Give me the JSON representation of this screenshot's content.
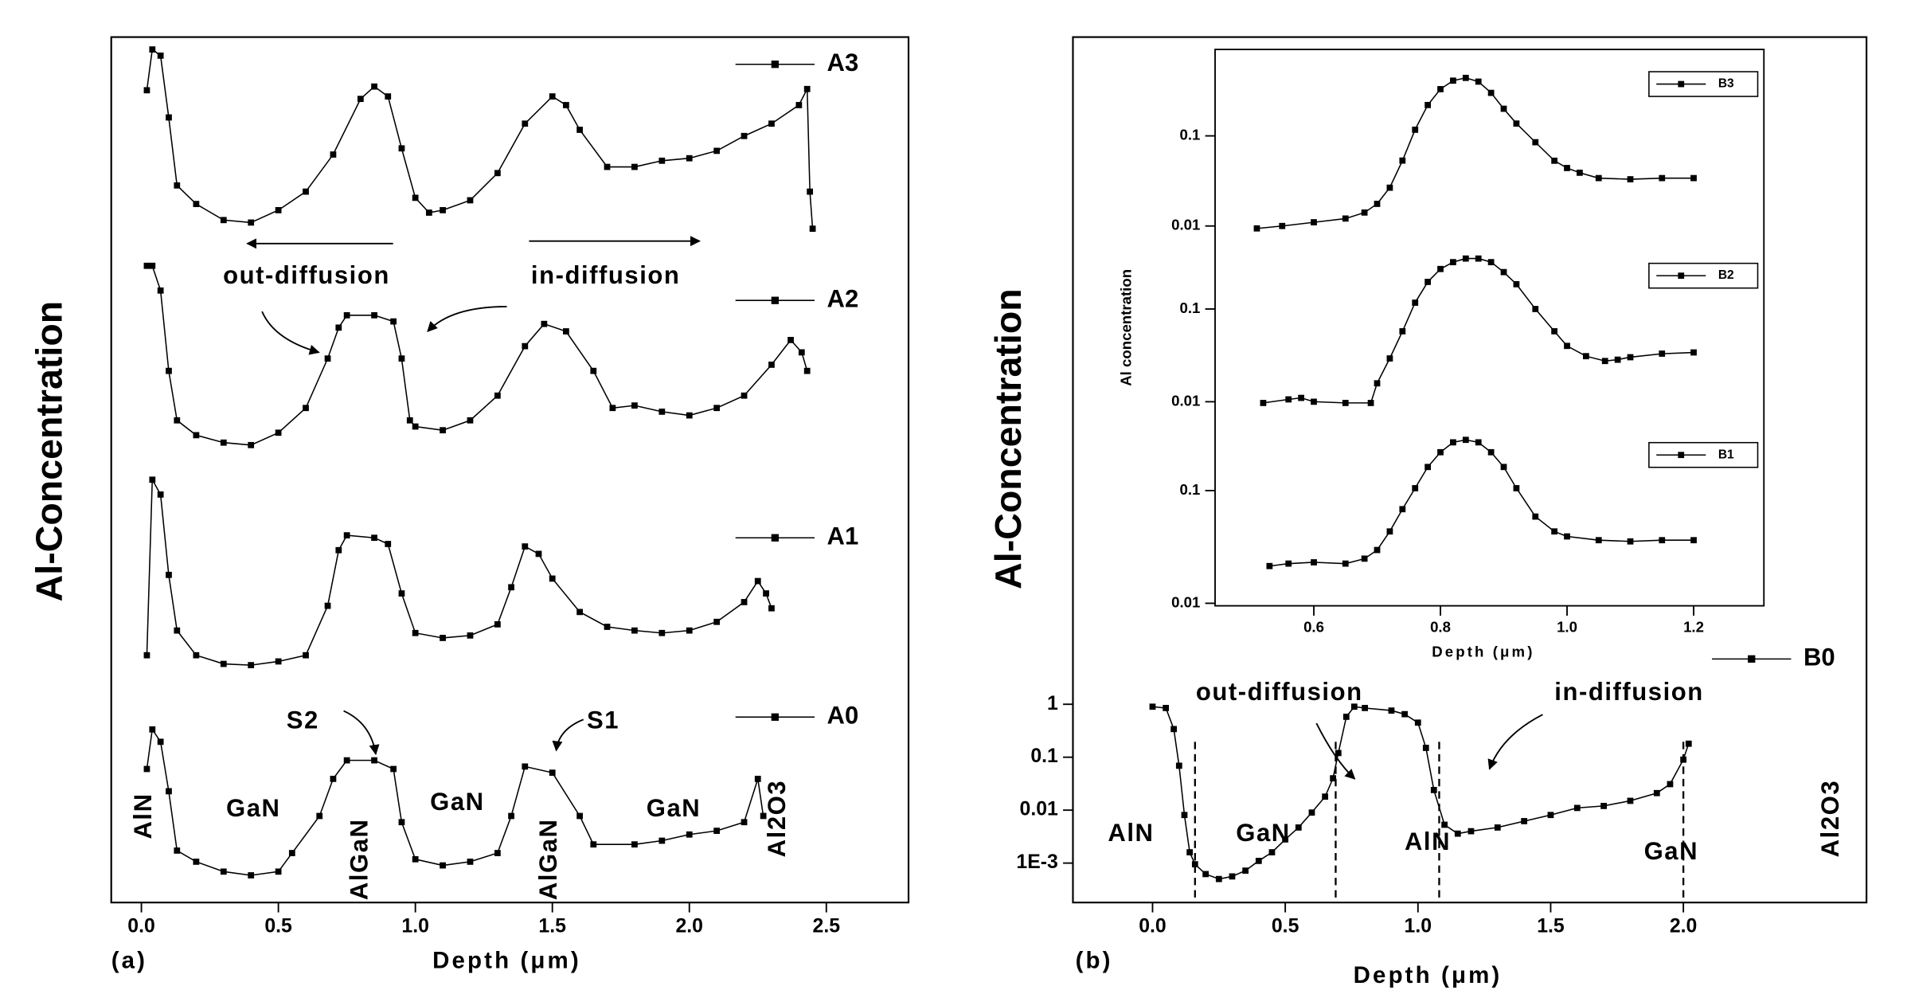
{
  "chart_data": [
    {
      "type": "line",
      "panel_label": "(a)",
      "xlabel": "Depth (μm)",
      "ylabel": "Al-Concentration",
      "xlim": [
        -0.11,
        2.8
      ],
      "xticks": [
        {
          "value": 0,
          "label": "0.0"
        },
        0.5,
        {
          "value": 1,
          "label": "1.0"
        },
        1.5,
        {
          "value": 2,
          "label": "2.0"
        },
        2.5
      ],
      "ylim": [
        0,
        700
      ],
      "series": [
        {
          "name": "A3",
          "color": "#000000",
          "x": [
            0.02,
            0.04,
            0.07,
            0.1,
            0.13,
            0.2,
            0.3,
            0.4,
            0.5,
            0.6,
            0.7,
            0.8,
            0.85,
            0.9,
            0.95,
            1.0,
            1.05,
            1.1,
            1.2,
            1.3,
            1.4,
            1.5,
            1.55,
            1.6,
            1.7,
            1.8,
            1.9,
            2.0,
            2.1,
            2.2,
            2.3,
            2.4,
            2.43,
            2.44,
            2.45
          ],
          "values": [
            657,
            690,
            685,
            635,
            580,
            565,
            552,
            550,
            560,
            575,
            605,
            650,
            660,
            652,
            610,
            570,
            558,
            560,
            568,
            590,
            630,
            652,
            645,
            625,
            595,
            595,
            600,
            602,
            608,
            620,
            630,
            645,
            658,
            575,
            545
          ]
        },
        {
          "name": "A2",
          "color": "#000000",
          "x": [
            0.02,
            0.04,
            0.07,
            0.1,
            0.13,
            0.2,
            0.3,
            0.4,
            0.5,
            0.6,
            0.68,
            0.72,
            0.75,
            0.85,
            0.92,
            0.95,
            0.98,
            1.0,
            1.1,
            1.2,
            1.3,
            1.4,
            1.47,
            1.55,
            1.65,
            1.72,
            1.8,
            1.9,
            2.0,
            2.1,
            2.2,
            2.3,
            2.37,
            2.41,
            2.43
          ],
          "values": [
            515,
            515,
            495,
            430,
            390,
            378,
            372,
            370,
            380,
            400,
            440,
            465,
            475,
            475,
            470,
            440,
            390,
            385,
            382,
            390,
            410,
            450,
            468,
            462,
            430,
            400,
            402,
            397,
            394,
            400,
            410,
            435,
            455,
            445,
            430
          ]
        },
        {
          "name": "A1",
          "color": "#000000",
          "x": [
            0.02,
            0.04,
            0.07,
            0.1,
            0.13,
            0.2,
            0.3,
            0.4,
            0.5,
            0.6,
            0.68,
            0.72,
            0.75,
            0.85,
            0.9,
            0.95,
            1.0,
            1.1,
            1.2,
            1.3,
            1.35,
            1.4,
            1.45,
            1.5,
            1.6,
            1.7,
            1.8,
            1.9,
            2.0,
            2.1,
            2.2,
            2.25,
            2.28,
            2.3
          ],
          "values": [
            200,
            342,
            330,
            265,
            220,
            200,
            193,
            192,
            195,
            200,
            240,
            285,
            297,
            295,
            290,
            250,
            218,
            214,
            216,
            225,
            255,
            288,
            282,
            262,
            235,
            223,
            220,
            218,
            220,
            227,
            243,
            260,
            250,
            238
          ]
        },
        {
          "name": "A0",
          "color": "#000000",
          "x": [
            0.02,
            0.04,
            0.07,
            0.1,
            0.13,
            0.2,
            0.3,
            0.4,
            0.5,
            0.55,
            0.65,
            0.7,
            0.75,
            0.85,
            0.92,
            0.95,
            1.0,
            1.1,
            1.2,
            1.3,
            1.35,
            1.4,
            1.5,
            1.6,
            1.65,
            1.8,
            1.9,
            2.0,
            2.1,
            2.2,
            2.25,
            2.27
          ],
          "values": [
            108,
            140,
            130,
            90,
            42,
            33,
            25,
            22,
            25,
            40,
            70,
            100,
            115,
            115,
            108,
            65,
            35,
            30,
            33,
            40,
            70,
            110,
            105,
            70,
            47,
            47,
            50,
            55,
            58,
            65,
            100,
            70
          ]
        }
      ],
      "annotations": [
        "out-diffusion",
        "in-diffusion",
        "S2",
        "S1",
        "AlN",
        "GaN",
        "AlGaN",
        "GaN",
        "AlGaN",
        "GaN",
        "Al2O3"
      ]
    },
    {
      "type": "line",
      "panel_label": "(b)",
      "xlabel": "Depth (μm)",
      "ylabel": "Al-Concentration",
      "ylog": true,
      "xlim": [
        -0.3,
        2.69
      ],
      "xticks": [
        {
          "value": 0,
          "label": "0.0"
        },
        0.5,
        {
          "value": 1,
          "label": "1.0"
        },
        1.5,
        {
          "value": 2,
          "label": "2.0"
        }
      ],
      "ylim": [
        0.00018,
        4000000000000.0
      ],
      "yticks": [
        {
          "value": 0.001,
          "label": "1E-3"
        },
        0.01,
        0.1,
        1
      ],
      "series": [
        {
          "name": "B0",
          "color": "#000000",
          "x": [
            0,
            0.05,
            0.08,
            0.1,
            0.12,
            0.14,
            0.16,
            0.2,
            0.25,
            0.3,
            0.35,
            0.4,
            0.45,
            0.5,
            0.55,
            0.6,
            0.65,
            0.68,
            0.7,
            0.73,
            0.76,
            0.8,
            0.9,
            0.95,
            1.0,
            1.03,
            1.06,
            1.1,
            1.15,
            1.2,
            1.3,
            1.4,
            1.5,
            1.6,
            1.7,
            1.8,
            1.9,
            1.95,
            2.0,
            2.02
          ],
          "values": [
            0.9,
            0.85,
            0.34,
            0.069,
            0.0081,
            0.0016,
            0.00095,
            0.00062,
            0.0005,
            0.00056,
            0.00072,
            0.0011,
            0.0016,
            0.0028,
            0.0047,
            0.009,
            0.018,
            0.04,
            0.12,
            0.58,
            0.9,
            0.85,
            0.76,
            0.65,
            0.45,
            0.15,
            0.024,
            0.0053,
            0.0036,
            0.004,
            0.0047,
            0.0062,
            0.0081,
            0.011,
            0.012,
            0.015,
            0.021,
            0.031,
            0.09,
            0.18
          ]
        }
      ],
      "dashed_lines_x": [
        0.16,
        0.69,
        1.08,
        2.0
      ],
      "annotations": [
        "out-diffusion",
        "in-diffusion",
        "AlN",
        "GaN",
        "AlN",
        "GaN",
        "Al2O3"
      ]
    },
    {
      "type": "inset",
      "xlabel": "Depth (μm)",
      "ylabel": "Al concentration",
      "ylog": true,
      "xlim": [
        0.444,
        1.311
      ],
      "xticks": [
        0.6,
        0.8,
        {
          "value": 1,
          "label": "1.0"
        },
        1.2
      ],
      "panels": [
        {
          "ylim": [
            0.0068,
            0.91
          ],
          "yticks": [
            0.01,
            0.1
          ],
          "series": [
            {
              "name": "B3",
              "color": "#000000",
              "x": [
                0.51,
                0.55,
                0.6,
                0.65,
                0.68,
                0.7,
                0.72,
                0.74,
                0.76,
                0.78,
                0.8,
                0.82,
                0.84,
                0.86,
                0.88,
                0.9,
                0.92,
                0.95,
                0.98,
                1.0,
                1.02,
                1.05,
                1.1,
                1.15,
                1.2
              ],
              "values": [
                0.0094,
                0.01,
                0.011,
                0.0121,
                0.0141,
                0.0176,
                0.0266,
                0.0532,
                0.117,
                0.22,
                0.33,
                0.41,
                0.44,
                0.4,
                0.3,
                0.2,
                0.137,
                0.085,
                0.053,
                0.044,
                0.039,
                0.034,
                0.033,
                0.034,
                0.034
              ]
            }
          ]
        },
        {
          "ylim": [
            0.0063,
            0.54
          ],
          "yticks": [
            0.01,
            0.1
          ],
          "series": [
            {
              "name": "B2",
              "color": "#000000",
              "x": [
                0.52,
                0.56,
                0.58,
                0.6,
                0.65,
                0.69,
                0.7,
                0.72,
                0.74,
                0.76,
                0.78,
                0.8,
                0.82,
                0.84,
                0.86,
                0.88,
                0.9,
                0.92,
                0.95,
                0.98,
                1.0,
                1.03,
                1.06,
                1.08,
                1.1,
                1.15,
                1.2
              ],
              "values": [
                0.0097,
                0.0106,
                0.011,
                0.01,
                0.0097,
                0.0097,
                0.0158,
                0.0293,
                0.0575,
                0.117,
                0.196,
                0.27,
                0.32,
                0.35,
                0.35,
                0.32,
                0.25,
                0.185,
                0.1,
                0.0575,
                0.04,
                0.031,
                0.0275,
                0.0284,
                0.0302,
                0.033,
                0.034
              ]
            }
          ]
        },
        {
          "ylim": [
            0.0095,
            0.42
          ],
          "yticks": [
            0.01,
            0.1
          ],
          "series": [
            {
              "name": "B1",
              "color": "#000000",
              "x": [
                0.53,
                0.56,
                0.6,
                0.65,
                0.68,
                0.7,
                0.72,
                0.74,
                0.76,
                0.78,
                0.8,
                0.82,
                0.84,
                0.86,
                0.88,
                0.9,
                0.92,
                0.95,
                0.98,
                1.0,
                1.05,
                1.1,
                1.15,
                1.2
              ],
              "values": [
                0.0214,
                0.0225,
                0.0231,
                0.0225,
                0.0249,
                0.0297,
                0.0434,
                0.0684,
                0.105,
                0.162,
                0.219,
                0.268,
                0.282,
                0.268,
                0.219,
                0.162,
                0.105,
                0.0588,
                0.0434,
                0.0392,
                0.0363,
                0.0354,
                0.0363,
                0.0363
              ]
            }
          ]
        }
      ]
    }
  ]
}
